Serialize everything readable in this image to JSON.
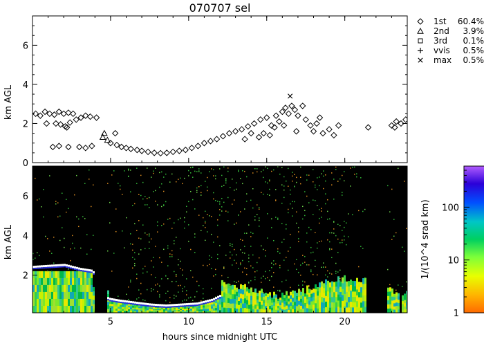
{
  "chart_data": [
    {
      "type": "scatter",
      "title": "070707 sel",
      "ylabel": "km AGL",
      "xlim": [
        0,
        24
      ],
      "ylim": [
        0,
        7.5
      ],
      "x_ticks": [
        5,
        10,
        15,
        20
      ],
      "y_ticks": [
        0,
        2,
        4,
        6
      ],
      "y_tick_labels": [
        "0",
        "2",
        "4",
        "6"
      ],
      "legend": [
        {
          "symbol": "diamond",
          "label": "1st",
          "value": "60.4%"
        },
        {
          "symbol": "triangle",
          "label": "2nd",
          "value": "3.9%"
        },
        {
          "symbol": "square",
          "label": "3rd",
          "value": "0.1%"
        },
        {
          "symbol": "plus",
          "label": "vvis",
          "value": "0.5%"
        },
        {
          "symbol": "cross",
          "label": "max",
          "value": "0.5%"
        }
      ],
      "legend_position": "right",
      "series": [
        {
          "name": "1st",
          "marker": "diamond",
          "points": [
            [
              0.2,
              2.5
            ],
            [
              0.5,
              2.4
            ],
            [
              0.8,
              2.6
            ],
            [
              1.1,
              2.5
            ],
            [
              1.4,
              2.45
            ],
            [
              1.7,
              2.6
            ],
            [
              2.0,
              2.5
            ],
            [
              2.3,
              2.55
            ],
            [
              2.6,
              2.5
            ],
            [
              1.5,
              2.0
            ],
            [
              1.8,
              1.95
            ],
            [
              2.1,
              1.85
            ],
            [
              2.4,
              2.05
            ],
            [
              2.2,
              1.8
            ],
            [
              2.8,
              2.2
            ],
            [
              3.1,
              2.3
            ],
            [
              3.4,
              2.4
            ],
            [
              3.7,
              2.35
            ],
            [
              4.1,
              2.3
            ],
            [
              0.9,
              2.0
            ],
            [
              1.3,
              0.8
            ],
            [
              1.7,
              0.85
            ],
            [
              2.3,
              0.8
            ],
            [
              3.0,
              0.8
            ],
            [
              3.4,
              0.75
            ],
            [
              3.8,
              0.85
            ],
            [
              5.0,
              1.0
            ],
            [
              5.4,
              0.9
            ],
            [
              5.7,
              0.8
            ],
            [
              6.0,
              0.75
            ],
            [
              6.3,
              0.7
            ],
            [
              6.7,
              0.65
            ],
            [
              7.0,
              0.6
            ],
            [
              7.4,
              0.55
            ],
            [
              7.8,
              0.5
            ],
            [
              8.2,
              0.48
            ],
            [
              8.6,
              0.5
            ],
            [
              9.0,
              0.55
            ],
            [
              9.4,
              0.6
            ],
            [
              9.8,
              0.65
            ],
            [
              10.2,
              0.75
            ],
            [
              10.6,
              0.85
            ],
            [
              11.0,
              1.0
            ],
            [
              11.4,
              1.1
            ],
            [
              11.8,
              1.2
            ],
            [
              12.2,
              1.35
            ],
            [
              12.6,
              1.5
            ],
            [
              13.0,
              1.6
            ],
            [
              13.4,
              1.7
            ],
            [
              13.8,
              1.85
            ],
            [
              14.2,
              2.0
            ],
            [
              14.6,
              2.2
            ],
            [
              15.0,
              2.3
            ],
            [
              14.5,
              1.3
            ],
            [
              14.8,
              1.5
            ],
            [
              15.2,
              1.4
            ],
            [
              15.5,
              1.8
            ],
            [
              15.8,
              2.1
            ],
            [
              16.0,
              2.6
            ],
            [
              16.2,
              2.8
            ],
            [
              16.4,
              2.5
            ],
            [
              16.6,
              2.9
            ],
            [
              16.8,
              2.7
            ],
            [
              17.0,
              2.4
            ],
            [
              17.3,
              2.9
            ],
            [
              17.5,
              2.2
            ],
            [
              17.8,
              1.9
            ],
            [
              18.0,
              1.6
            ],
            [
              18.2,
              2.0
            ],
            [
              18.4,
              2.3
            ],
            [
              18.6,
              1.5
            ],
            [
              19.0,
              1.7
            ],
            [
              19.3,
              1.4
            ],
            [
              19.6,
              1.9
            ],
            [
              15.6,
              2.4
            ],
            [
              16.1,
              1.9
            ],
            [
              16.9,
              1.6
            ],
            [
              14.0,
              1.5
            ],
            [
              13.6,
              1.2
            ],
            [
              15.3,
              1.9
            ],
            [
              5.3,
              1.5
            ],
            [
              21.5,
              1.8
            ],
            [
              23.0,
              1.9
            ],
            [
              23.3,
              2.1
            ],
            [
              23.6,
              2.0
            ],
            [
              23.9,
              2.2
            ],
            [
              23.2,
              1.8
            ]
          ]
        },
        {
          "name": "2nd",
          "marker": "triangle",
          "points": [
            [
              4.5,
              1.3
            ],
            [
              4.6,
              1.5
            ],
            [
              4.8,
              1.15
            ]
          ]
        },
        {
          "name": "max",
          "marker": "cross",
          "points": [
            [
              16.5,
              3.4
            ]
          ]
        }
      ]
    },
    {
      "type": "heatmap",
      "xlabel": "hours since midnight UTC",
      "ylabel": "km AGL",
      "xlim": [
        0,
        24
      ],
      "ylim": [
        0.1,
        7.5
      ],
      "x_ticks": [
        5,
        10,
        15,
        20
      ],
      "x_tick_labels": [
        "5",
        "10",
        "15",
        "20"
      ],
      "y_ticks": [
        2,
        4,
        6
      ],
      "y_tick_labels": [
        "2",
        "4",
        "6"
      ],
      "cloud_base_km": [
        [
          0.0,
          2.4
        ],
        [
          1.0,
          2.45
        ],
        [
          2.0,
          2.5
        ],
        [
          3.0,
          2.3
        ],
        [
          3.8,
          2.2
        ],
        [
          4.8,
          0.8
        ],
        [
          5.5,
          0.7
        ],
        [
          6.5,
          0.6
        ],
        [
          7.5,
          0.5
        ],
        [
          8.5,
          0.45
        ],
        [
          9.5,
          0.5
        ],
        [
          10.5,
          0.55
        ],
        [
          11.5,
          0.75
        ],
        [
          12.0,
          0.95
        ]
      ],
      "colorbar": {
        "label": "1/(10^4 srad km)",
        "scale": "log",
        "range": [
          1,
          600
        ],
        "ticks": [
          1,
          10,
          100
        ],
        "tick_labels": [
          "1",
          "10",
          "100"
        ]
      }
    }
  ]
}
